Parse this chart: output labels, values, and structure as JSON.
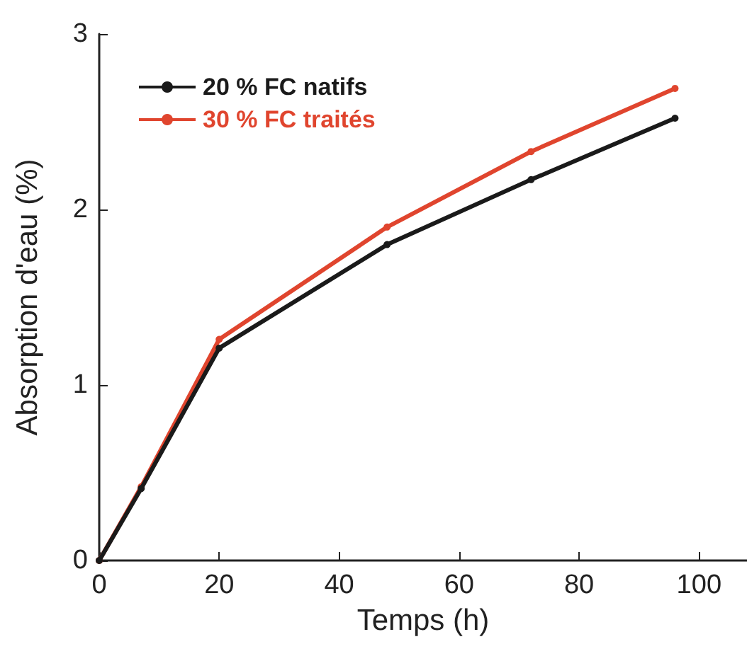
{
  "chart_data": {
    "type": "line",
    "xlabel": "Temps (h)",
    "ylabel": "Absorption d'eau (%)",
    "xlim": [
      0,
      108
    ],
    "xticks": [
      0,
      20,
      40,
      60,
      80,
      100
    ],
    "ylim": [
      0,
      3
    ],
    "yticks": [
      0,
      1,
      2,
      3
    ],
    "legend": "top left",
    "marker": "circle",
    "grid": false,
    "series": [
      {
        "name": "20 % FC natifs",
        "color": "#1a1a1a",
        "x": [
          0,
          7,
          20,
          48,
          72,
          96
        ],
        "values": [
          0,
          0.41,
          1.21,
          1.8,
          2.17,
          2.52
        ]
      },
      {
        "name": "30 % FC traités",
        "color": "#e0452e",
        "x": [
          0,
          7,
          20,
          48,
          72,
          96
        ],
        "values": [
          0,
          0.42,
          1.26,
          1.9,
          2.33,
          2.69
        ]
      }
    ]
  }
}
